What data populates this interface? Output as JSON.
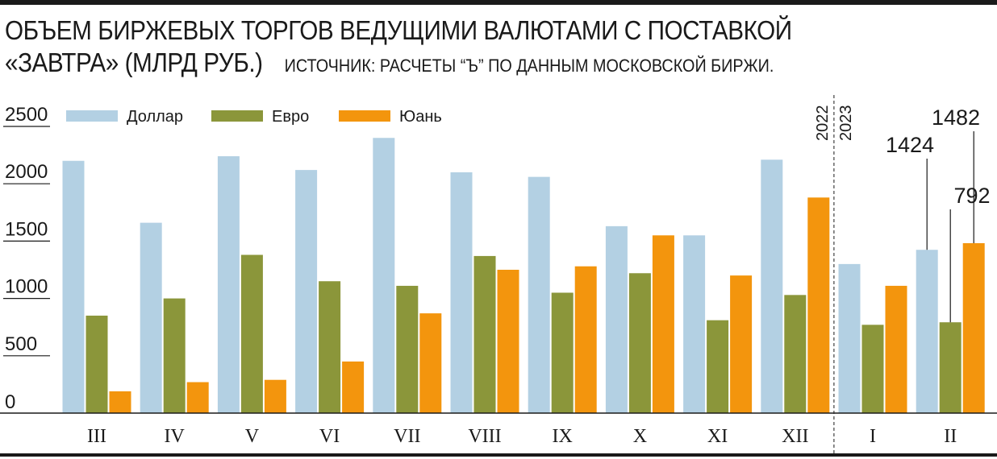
{
  "chart_data": {
    "type": "bar",
    "title_line1": "ОБЪЕМ БИРЖЕВЫХ ТОРГОВ ВЕДУЩИМИ ВАЛЮТАМИ С ПОСТАВКОЙ",
    "title_line2": "«ЗАВТРА» (МЛРД РУБ.)",
    "source": "ИСТОЧНИК: РАСЧЕТЫ “Ъ” ПО ДАННЫМ МОСКОВСКОЙ БИРЖИ.",
    "categories": [
      "III",
      "IV",
      "V",
      "VI",
      "VII",
      "VIII",
      "IX",
      "X",
      "XI",
      "XII",
      "I",
      "II"
    ],
    "year_labels": [
      "2022",
      "2023"
    ],
    "ylim": [
      0,
      2500
    ],
    "yticks": [
      0,
      500,
      1000,
      1500,
      2000,
      2500
    ],
    "ytick_labels": [
      "0",
      "500",
      "1000",
      "1500",
      "2000",
      "2500"
    ],
    "legend_placement": "top",
    "colors": {
      "dollar": "#b3d0e3",
      "euro": "#8b963a",
      "yuan": "#f3950d",
      "text": "#1a1a1a"
    },
    "series": [
      {
        "name": "Доллар",
        "values": [
          2200,
          1660,
          2240,
          2120,
          2400,
          2100,
          2060,
          1630,
          1550,
          2210,
          1300,
          1424
        ]
      },
      {
        "name": "Евро",
        "values": [
          850,
          1000,
          1380,
          1150,
          1110,
          1370,
          1050,
          1220,
          810,
          1030,
          770,
          792
        ]
      },
      {
        "name": "Юань",
        "values": [
          190,
          270,
          290,
          450,
          870,
          1250,
          1280,
          1550,
          1200,
          1880,
          1110,
          1482
        ]
      }
    ],
    "annotations": [
      {
        "text": "1424",
        "category": "II",
        "series": "Доллар",
        "value": 1424
      },
      {
        "text": "792",
        "category": "II",
        "series": "Евро",
        "value": 792
      },
      {
        "text": "1482",
        "category": "II",
        "series": "Юань",
        "value": 1482
      }
    ]
  }
}
